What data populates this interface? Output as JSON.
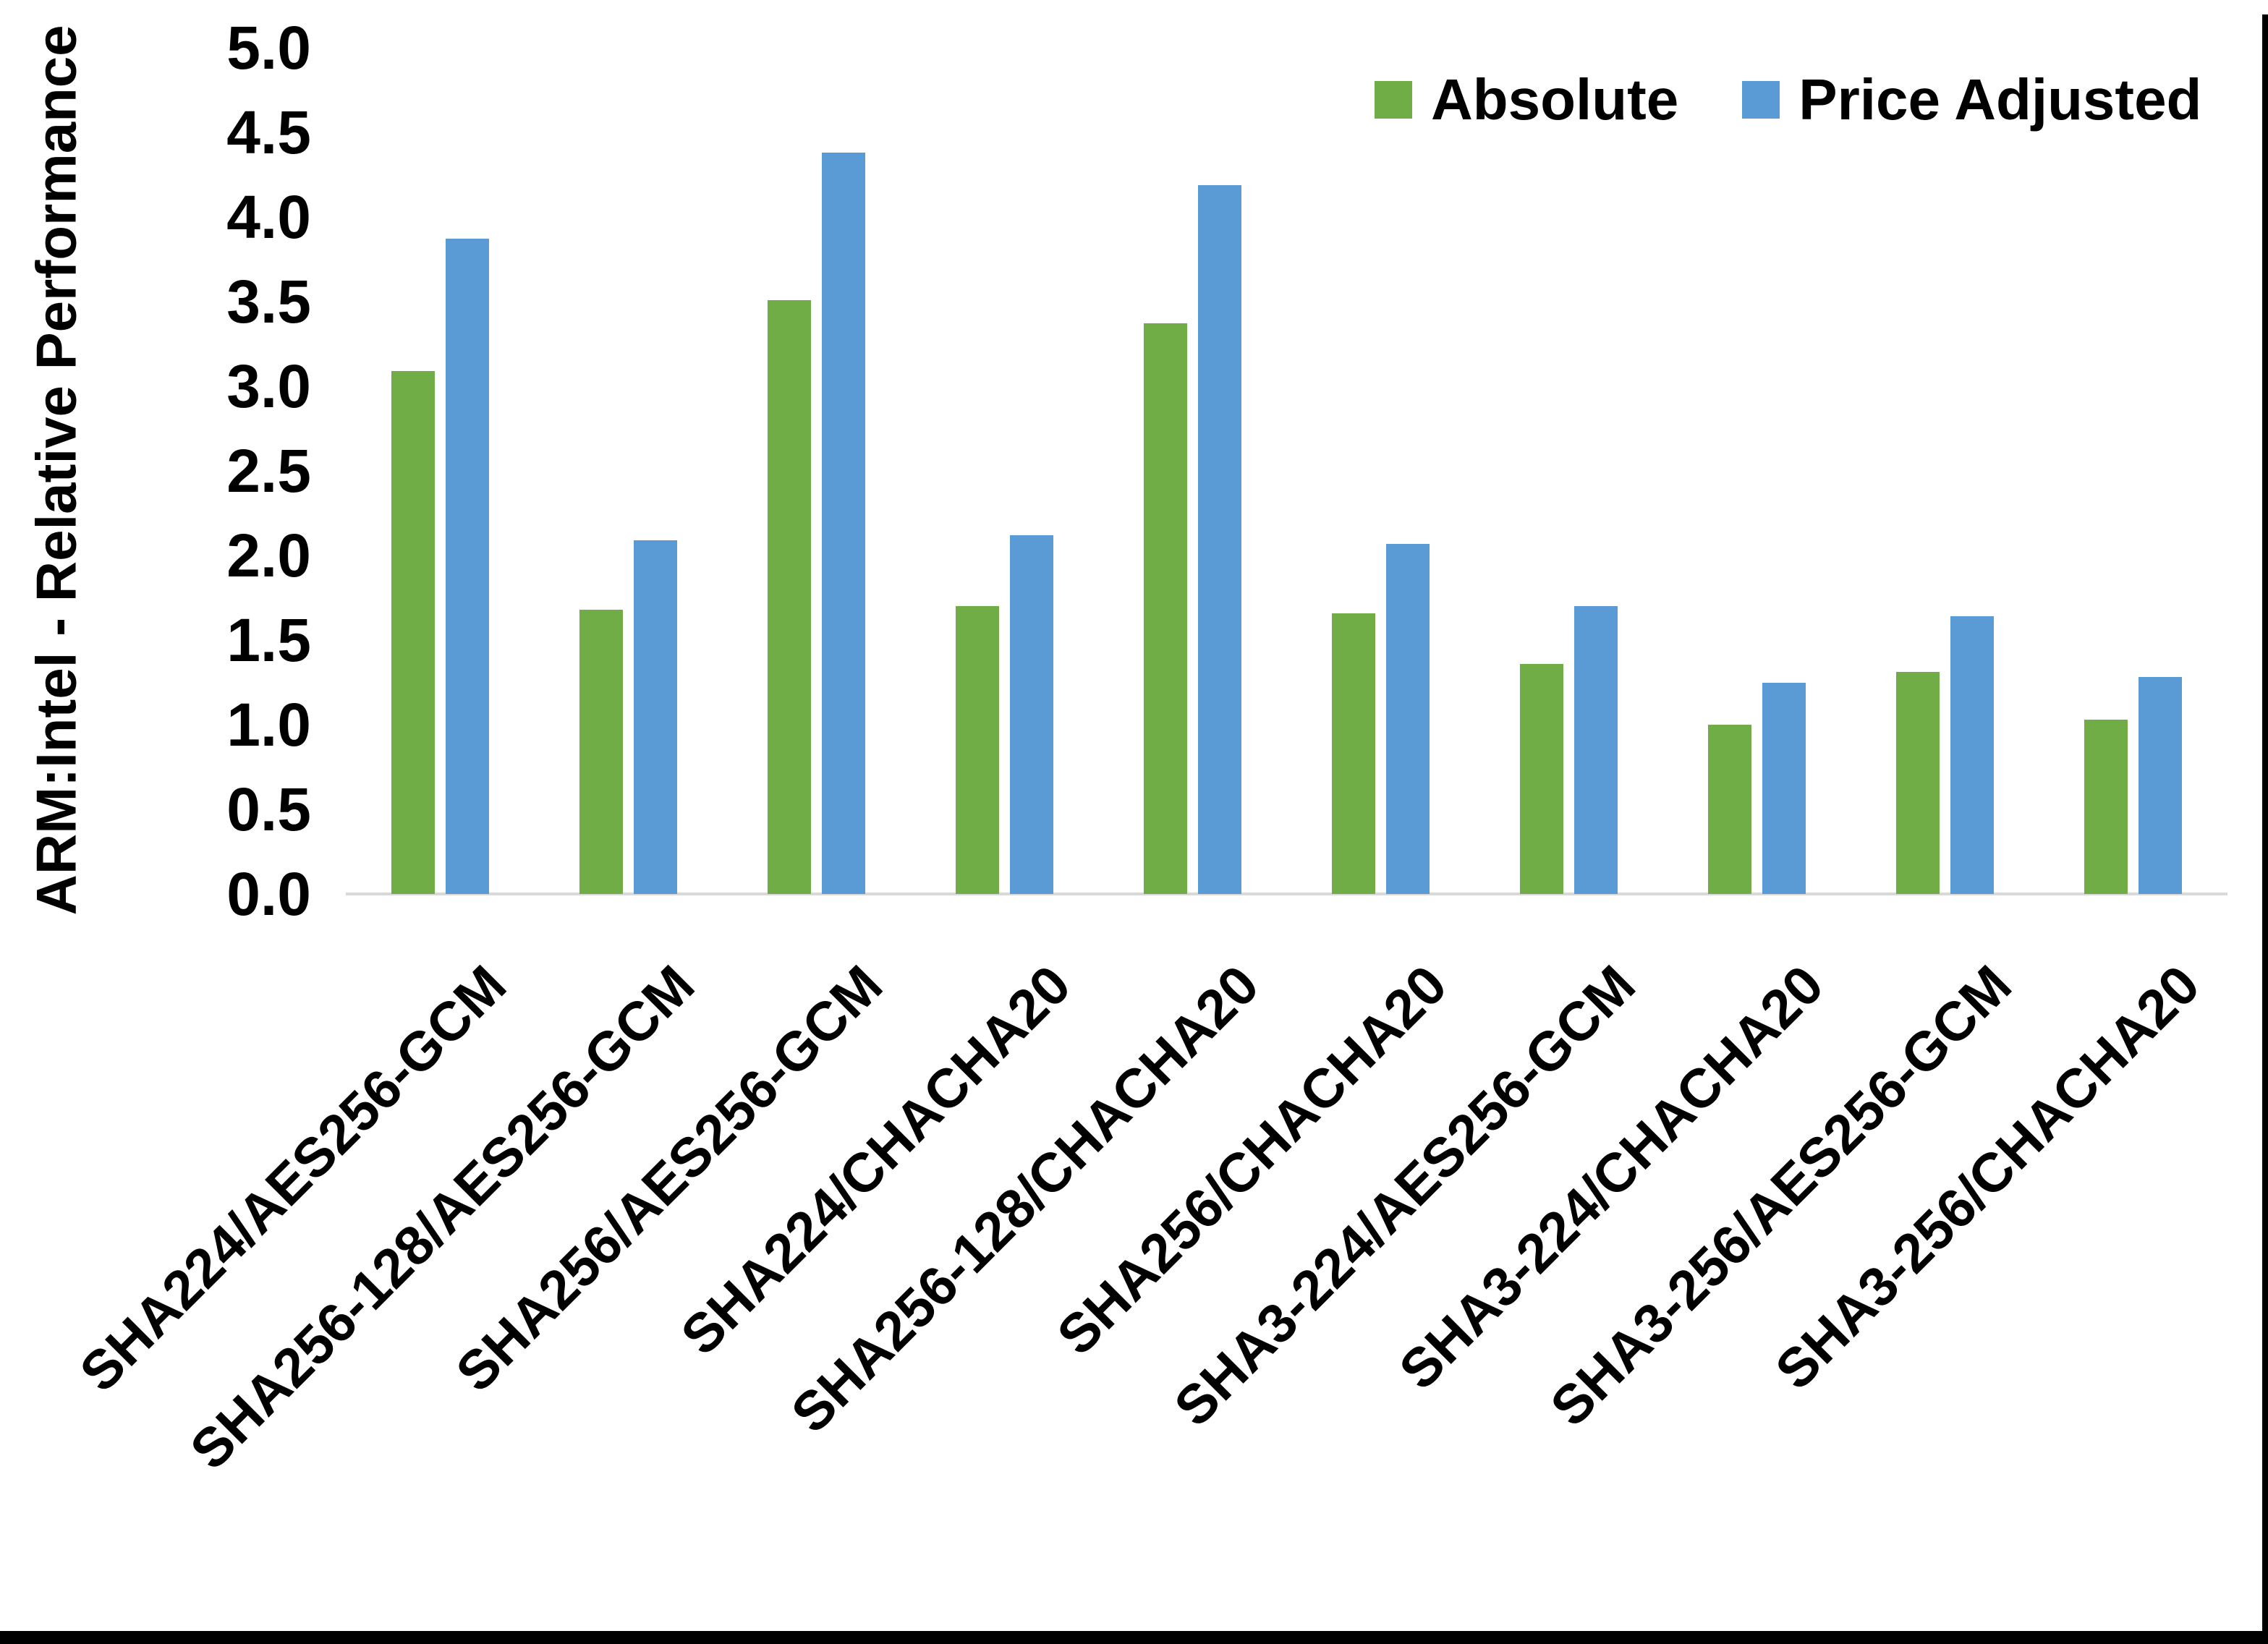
{
  "chart_data": {
    "type": "bar",
    "title": "",
    "ylabel": "ARM:Intel - Relative Performance",
    "xlabel": "",
    "categories": [
      "SHA224/AES256-GCM",
      "SHA256-128/AES256-GCM",
      "SHA256/AES256-GCM",
      "SHA224/CHACHA20",
      "SHA256-128/CHACHA20",
      "SHA256/CHACHA20",
      "SHA3-224/AES256-GCM",
      "SHA3-224/CHACHA20",
      "SHA3-256/AES256-GCM",
      "SHA3-256/CHACHA20"
    ],
    "series": [
      {
        "name": "Absolute",
        "color": "#70AD47",
        "values": [
          3.09,
          1.68,
          3.51,
          1.7,
          3.37,
          1.66,
          1.36,
          1.0,
          1.31,
          1.03
        ]
      },
      {
        "name": "Price Adjusted",
        "color": "#5B9BD5",
        "values": [
          3.87,
          2.09,
          4.38,
          2.12,
          4.19,
          2.07,
          1.7,
          1.25,
          1.64,
          1.28
        ]
      }
    ],
    "ylim": [
      0.0,
      5.0
    ],
    "ytick_step": 0.5,
    "ytick_labels": [
      "0.0",
      "0.5",
      "1.0",
      "1.5",
      "2.0",
      "2.5",
      "3.0",
      "3.5",
      "4.0",
      "4.5",
      "5.0"
    ],
    "grid": false,
    "legend_position": "top-right",
    "x_label_rotation_deg": 45
  },
  "legend": {
    "items": [
      {
        "label": "Absolute",
        "color": "#70AD47"
      },
      {
        "label": "Price Adjusted",
        "color": "#5B9BD5"
      }
    ]
  },
  "axis": {
    "baseline_color": "#D9D9D9",
    "text_color": "#000000"
  },
  "frame": {
    "border_color": "#000000"
  }
}
